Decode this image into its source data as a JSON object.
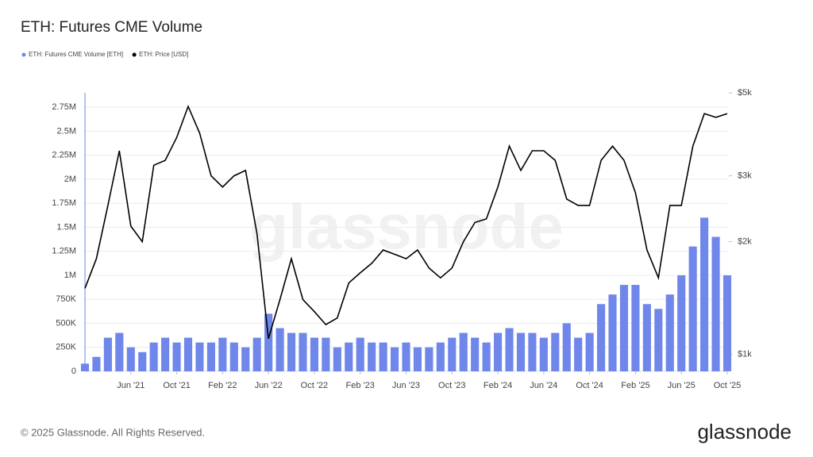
{
  "chart_data": {
    "type": "bar-line",
    "title": "ETH: Futures CME Volume",
    "watermark": "glassnode",
    "footer": "© 2025 Glassnode. All Rights Reserved.",
    "brand": "glassnode",
    "x": [
      "2021-02",
      "2021-03",
      "2021-04",
      "2021-05",
      "2021-06",
      "2021-07",
      "2021-08",
      "2021-09",
      "2021-10",
      "2021-11",
      "2021-12",
      "2022-01",
      "2022-02",
      "2022-03",
      "2022-04",
      "2022-05",
      "2022-06",
      "2022-07",
      "2022-08",
      "2022-09",
      "2022-10",
      "2022-11",
      "2022-12",
      "2023-01",
      "2023-02",
      "2023-03",
      "2023-04",
      "2023-05",
      "2023-06",
      "2023-07",
      "2023-08",
      "2023-09",
      "2023-10",
      "2023-11",
      "2023-12",
      "2024-01",
      "2024-02",
      "2024-03",
      "2024-04",
      "2024-05",
      "2024-06",
      "2024-07",
      "2024-08",
      "2024-09",
      "2024-10",
      "2024-11",
      "2024-12",
      "2025-01",
      "2025-02",
      "2025-03",
      "2025-04",
      "2025-05",
      "2025-06",
      "2025-07",
      "2025-08",
      "2025-09",
      "2025-10"
    ],
    "xlim": [
      "2021-02",
      "2025-10"
    ],
    "xticks": [
      {
        "value": "2021-06",
        "label": "Jun '21"
      },
      {
        "value": "2021-10",
        "label": "Oct '21"
      },
      {
        "value": "2022-02",
        "label": "Feb '22"
      },
      {
        "value": "2022-06",
        "label": "Jun '22"
      },
      {
        "value": "2022-10",
        "label": "Oct '22"
      },
      {
        "value": "2023-02",
        "label": "Feb '23"
      },
      {
        "value": "2023-06",
        "label": "Jun '23"
      },
      {
        "value": "2023-10",
        "label": "Oct '23"
      },
      {
        "value": "2024-02",
        "label": "Feb '24"
      },
      {
        "value": "2024-06",
        "label": "Jun '24"
      },
      {
        "value": "2024-10",
        "label": "Oct '24"
      },
      {
        "value": "2025-02",
        "label": "Feb '25"
      },
      {
        "value": "2025-06",
        "label": "Jun '25"
      },
      {
        "value": "2025-10",
        "label": "Oct '25"
      }
    ],
    "series": [
      {
        "name": "ETH: Futures CME Volume [ETH]",
        "type": "bar",
        "color": "#6f86ea",
        "values": [
          80000,
          150000,
          350000,
          400000,
          250000,
          200000,
          300000,
          350000,
          300000,
          350000,
          300000,
          300000,
          350000,
          300000,
          250000,
          350000,
          600000,
          450000,
          400000,
          400000,
          350000,
          350000,
          250000,
          300000,
          350000,
          300000,
          300000,
          250000,
          300000,
          250000,
          250000,
          300000,
          350000,
          400000,
          350000,
          300000,
          400000,
          450000,
          400000,
          400000,
          350000,
          400000,
          500000,
          350000,
          400000,
          700000,
          800000,
          900000,
          900000,
          700000,
          650000,
          800000,
          1000000,
          1300000,
          1600000,
          1400000,
          1000000
        ]
      },
      {
        "name": "ETH: Price [USD]",
        "type": "line",
        "axis": "y2",
        "color": "#000000",
        "values": [
          1500,
          1800,
          2500,
          3500,
          2200,
          2000,
          3200,
          3300,
          3800,
          4600,
          3900,
          3000,
          2800,
          3000,
          3100,
          2100,
          1100,
          1400,
          1800,
          1400,
          1300,
          1200,
          1250,
          1550,
          1650,
          1750,
          1900,
          1850,
          1800,
          1900,
          1700,
          1600,
          1700,
          2000,
          2250,
          2300,
          2800,
          3600,
          3100,
          3500,
          3500,
          3300,
          2600,
          2500,
          2500,
          3300,
          3600,
          3300,
          2700,
          1900,
          1600,
          2500,
          2500,
          3600,
          4400,
          4300,
          4400
        ]
      }
    ],
    "ylim": [
      0,
      2900000
    ],
    "yticks": [
      0,
      {
        "value": 250000,
        "label": "250K"
      },
      {
        "value": 500000,
        "label": "500K"
      },
      {
        "value": 750000,
        "label": "750K"
      },
      {
        "value": 1000000,
        "label": "1M"
      },
      {
        "value": 1250000,
        "label": "1.25M"
      },
      {
        "value": 1500000,
        "label": "1.5M"
      },
      {
        "value": 1750000,
        "label": "1.75M"
      },
      {
        "value": 2000000,
        "label": "2M"
      },
      {
        "value": 2250000,
        "label": "2.25M"
      },
      {
        "value": 2500000,
        "label": "2.5M"
      },
      {
        "value": 2750000,
        "label": "2.75M"
      }
    ],
    "y2lim": [
      900,
      5000
    ],
    "y2scale": "log",
    "y2ticks": [
      {
        "value": 1000,
        "label": "$1k"
      },
      {
        "value": 2000,
        "label": "$2k"
      },
      {
        "value": 3000,
        "label": "$3k"
      },
      {
        "value": 5000,
        "label": "$5k"
      }
    ],
    "grid": true,
    "legend": "top-left"
  }
}
